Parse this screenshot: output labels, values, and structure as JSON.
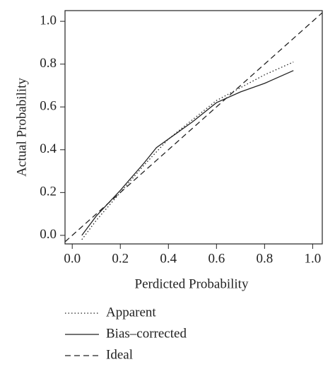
{
  "chart_data": {
    "type": "line",
    "x_label": "Perdicted Probability",
    "y_label": "Actual Probability",
    "xlim": [
      -0.03,
      1.04
    ],
    "ylim": [
      -0.04,
      1.05
    ],
    "xticks": [
      {
        "value": 0,
        "label": "0.0"
      },
      {
        "value": 0.2,
        "label": "0.2"
      },
      {
        "value": 0.4,
        "label": "0.4"
      },
      {
        "value": 0.6,
        "label": "0.6"
      },
      {
        "value": 0.8,
        "label": "0.8"
      },
      {
        "value": 1,
        "label": "1.0"
      }
    ],
    "yticks": [
      {
        "value": 0,
        "label": "0.0"
      },
      {
        "value": 0.2,
        "label": "0.2"
      },
      {
        "value": 0.4,
        "label": "0.4"
      },
      {
        "value": 0.6,
        "label": "0.6"
      },
      {
        "value": 0.8,
        "label": "0.8"
      },
      {
        "value": 1,
        "label": "1.0"
      }
    ],
    "series": [
      {
        "name": "Apparent",
        "color": "#222",
        "dash": "dotted",
        "x": [
          0.04,
          0.1,
          0.2,
          0.3,
          0.4,
          0.5,
          0.6,
          0.7,
          0.8,
          0.92
        ],
        "values": [
          -0.02,
          0.07,
          0.2,
          0.33,
          0.45,
          0.54,
          0.63,
          0.69,
          0.75,
          0.81
        ]
      },
      {
        "name": "Bias–corrected",
        "color": "#222",
        "dash": "solid",
        "x": [
          0.04,
          0.1,
          0.2,
          0.3,
          0.35,
          0.4,
          0.5,
          0.6,
          0.7,
          0.8,
          0.9,
          0.92
        ],
        "values": [
          0.0,
          0.09,
          0.21,
          0.34,
          0.41,
          0.45,
          0.53,
          0.62,
          0.67,
          0.71,
          0.76,
          0.77
        ]
      },
      {
        "name": "Ideal",
        "color": "#222",
        "dash": "dashed",
        "x": [
          -0.03,
          1.04
        ],
        "values": [
          -0.03,
          1.04
        ]
      }
    ]
  }
}
